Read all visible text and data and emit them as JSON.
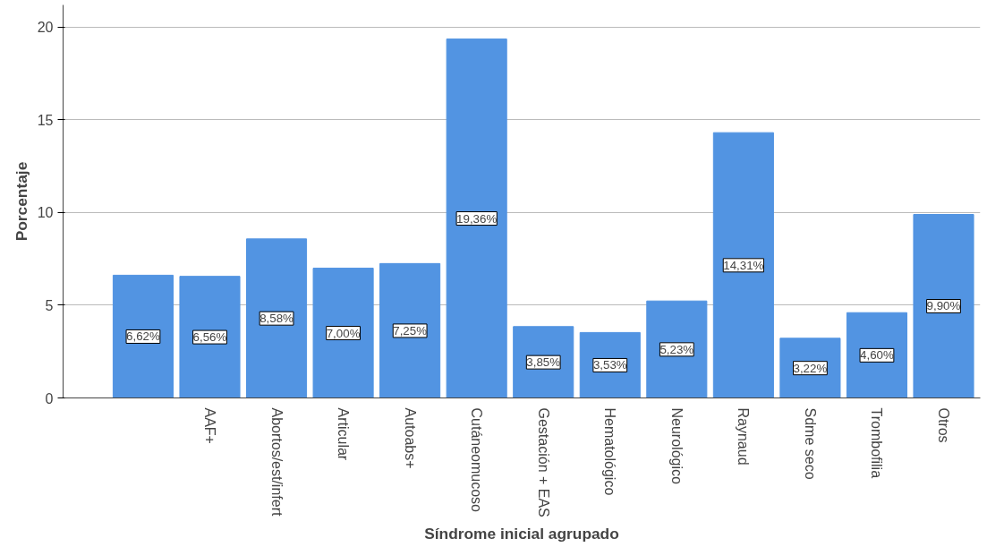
{
  "chart_data": {
    "type": "bar",
    "xlabel": "Síndrome inicial agrupado",
    "ylabel": "Porcentaje",
    "categories": [
      null,
      "AAF+",
      "Abortos/est/infert",
      "Articular",
      "Autoabs+",
      "Cutáneomucoso",
      "Gestación + EAS",
      "Hematológico",
      "Neurológico",
      "Raynaud",
      "Sdme seco",
      "Trombofilia",
      "Otros"
    ],
    "values": [
      6.62,
      6.56,
      8.58,
      7.0,
      7.25,
      19.36,
      3.85,
      3.53,
      5.23,
      14.31,
      3.22,
      4.6,
      9.9
    ],
    "value_labels": [
      "6,62%",
      "6,56%",
      "8,58%",
      "7,00%",
      "7,25%",
      "19,36%",
      "3,85%",
      "3,53%",
      "5,23%",
      "14,31%",
      "3,22%",
      "4,60%",
      "9,90%"
    ],
    "color": "#5294e2",
    "ylim": [
      0,
      21.2
    ],
    "yticks": [
      0,
      5,
      10,
      15,
      20
    ],
    "grid": "y"
  }
}
